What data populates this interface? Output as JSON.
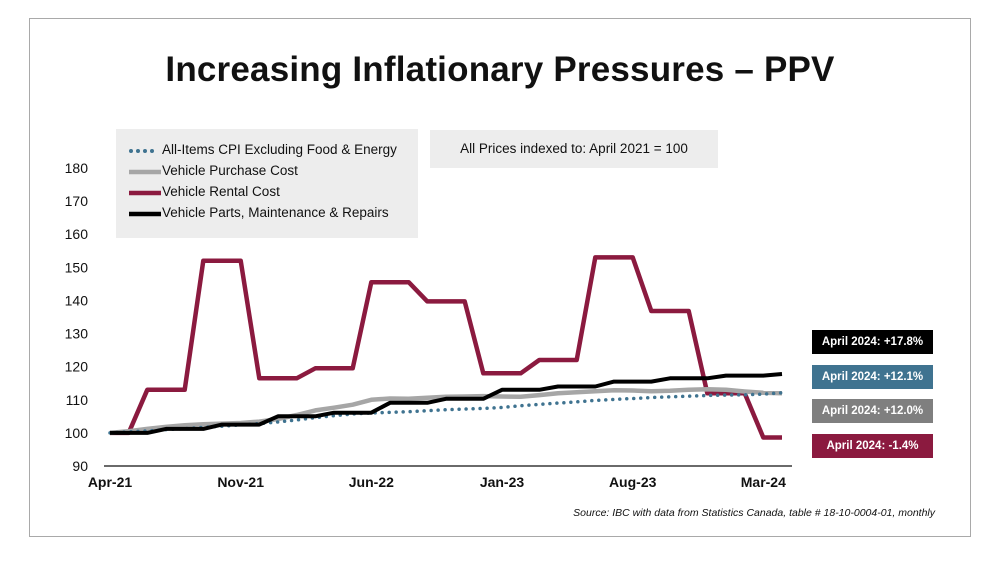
{
  "title": "Increasing Inflationary Pressures – PPV",
  "note": "All Prices indexed to:  April 2021 = 100",
  "source": "Source: IBC with data from Statistics Canada, table # 18-10-0004-01, monthly",
  "badges": [
    {
      "label": "April 2024: +17.8%",
      "color": "#000000"
    },
    {
      "label": "April 2024: +12.1%",
      "color": "#3f7390"
    },
    {
      "label": "April 2024: +12.0%",
      "color": "#7f7f7f"
    },
    {
      "label": "April 2024: -1.4%",
      "color": "#8b1a3f"
    }
  ],
  "chart_data": {
    "type": "line",
    "title": "Increasing Inflationary Pressures – PPV",
    "xlabel": "",
    "ylabel": "",
    "ylim": [
      90,
      180
    ],
    "yticks": [
      90,
      100,
      110,
      120,
      130,
      140,
      150,
      160,
      170,
      180
    ],
    "x": [
      "Apr-21",
      "May-21",
      "Jun-21",
      "Jul-21",
      "Aug-21",
      "Sep-21",
      "Oct-21",
      "Nov-21",
      "Dec-21",
      "Jan-22",
      "Feb-22",
      "Mar-22",
      "Apr-22",
      "May-22",
      "Jun-22",
      "Jul-22",
      "Aug-22",
      "Sep-22",
      "Oct-22",
      "Nov-22",
      "Dec-22",
      "Jan-23",
      "Feb-23",
      "Mar-23",
      "Apr-23",
      "May-23",
      "Jun-23",
      "Jul-23",
      "Aug-23",
      "Sep-23",
      "Oct-23",
      "Nov-23",
      "Dec-23",
      "Jan-24",
      "Feb-24",
      "Mar-24",
      "Apr-24"
    ],
    "xticks": [
      "Apr-21",
      "Nov-21",
      "Jun-22",
      "Jan-23",
      "Aug-23",
      "Mar-24"
    ],
    "series": [
      {
        "name": "All-Items CPI Excluding Food & Energy",
        "color": "#3f7390",
        "style": "dotted",
        "values": [
          100,
          100.3,
          100.6,
          101,
          101.3,
          101.7,
          102,
          102.4,
          102.8,
          103.3,
          103.9,
          104.6,
          105.2,
          105.7,
          106,
          106.2,
          106.4,
          106.7,
          107,
          107.2,
          107.4,
          107.7,
          108.2,
          108.6,
          109,
          109.4,
          109.8,
          110.1,
          110.4,
          110.7,
          110.9,
          111.1,
          111.3,
          111.4,
          111.5,
          111.7,
          112.1
        ]
      },
      {
        "name": "Vehicle Purchase Cost",
        "color": "#a6a6a6",
        "style": "solid",
        "values": [
          100,
          100.5,
          101.2,
          101.8,
          102.3,
          102.6,
          102.8,
          103,
          103.4,
          104.2,
          105.4,
          106.8,
          107.6,
          108.5,
          110,
          110.4,
          110.3,
          110.6,
          110.9,
          111,
          111.1,
          111,
          110.9,
          111.4,
          112,
          112.3,
          112.6,
          112.9,
          112.8,
          112.6,
          112.7,
          113,
          113.2,
          113,
          112.5,
          112.1,
          112
        ]
      },
      {
        "name": "Vehicle Rental Cost",
        "color": "#8b1a3f",
        "style": "solid",
        "values": [
          100,
          100,
          113,
          113,
          113,
          152,
          152,
          152,
          116.5,
          116.5,
          116.5,
          119.5,
          119.5,
          119.5,
          145.5,
          145.5,
          145.5,
          139.7,
          139.7,
          139.7,
          118,
          118,
          118,
          122,
          122,
          122,
          153,
          153,
          153,
          136.8,
          136.8,
          136.8,
          112,
          112,
          112,
          98.6,
          98.6
        ]
      },
      {
        "name": "Vehicle Parts, Maintenance & Repairs",
        "color": "#000000",
        "style": "solid",
        "values": [
          100,
          100,
          100,
          101.2,
          101.2,
          101.2,
          102.5,
          102.5,
          102.5,
          105,
          105,
          105,
          106.1,
          106.1,
          106.1,
          109.1,
          109.1,
          109.1,
          110.3,
          110.3,
          110.3,
          113,
          113,
          113,
          114,
          114,
          114,
          115.5,
          115.5,
          115.5,
          116.5,
          116.5,
          116.5,
          117.3,
          117.3,
          117.3,
          117.8
        ]
      }
    ]
  }
}
